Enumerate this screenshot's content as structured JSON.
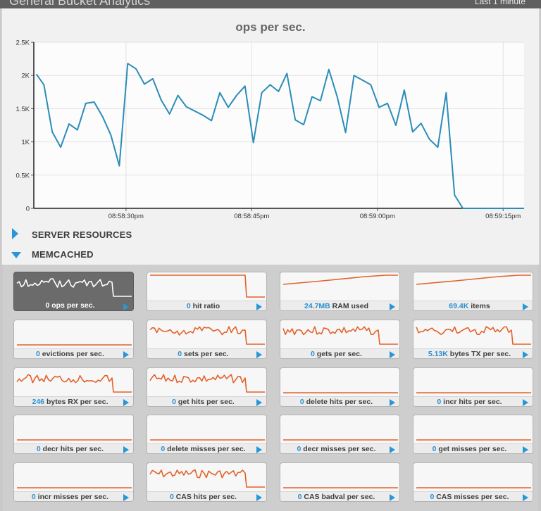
{
  "header": {
    "title": "General Bucket Analytics",
    "range_label": "Last 1 minute"
  },
  "colors": {
    "line_blue": "#2b8db8",
    "spark_orange": "#e2622b",
    "accent": "#2996d8"
  },
  "main_chart": {
    "title": "ops per sec.",
    "chart_data": {
      "type": "line",
      "title": "ops per sec.",
      "xlabel": "",
      "ylabel": "",
      "ylim": [
        0,
        2500
      ],
      "yticks": [
        "0",
        "0.5K",
        "1K",
        "1.5K",
        "2K",
        "2.5K"
      ],
      "ytick_values": [
        0,
        500,
        1000,
        1500,
        2000,
        2500
      ],
      "xticks": [
        "08:58:30pm",
        "08:58:45pm",
        "08:59:00pm",
        "08:59:15pm"
      ],
      "xtick_values": [
        30,
        45,
        60,
        75
      ],
      "xlim": [
        19,
        77.5
      ],
      "grid": true,
      "series": [
        {
          "x": [
            19.3,
            20.2,
            21.2,
            22.2,
            23.2,
            24.2,
            25.2,
            26.2,
            27.2,
            28.2,
            29.2,
            30.2,
            31.2,
            32.2,
            33.2,
            34.2,
            35.2,
            36.2,
            37.2,
            39.2,
            40.2,
            41.2,
            42.2,
            43.2,
            44.2,
            45.2,
            46.2,
            47.2,
            48.2,
            49.2,
            50.2,
            51.2,
            52.2,
            53.2,
            54.2,
            55.2,
            56.2,
            57.2,
            58.2,
            59.2,
            60.2,
            61.2,
            62.2,
            63.2,
            64.2,
            65.2,
            66.2,
            67.2,
            68.2,
            69.2,
            70.2,
            77.5
          ],
          "y": [
            2020,
            1860,
            1150,
            920,
            1270,
            1180,
            1580,
            1600,
            1380,
            1100,
            640,
            2180,
            2100,
            1870,
            1950,
            1630,
            1420,
            1700,
            1530,
            1400,
            1320,
            1740,
            1520,
            1700,
            1840,
            990,
            1740,
            1860,
            1760,
            2030,
            1330,
            1260,
            1680,
            1620,
            2090,
            1680,
            1140,
            2000,
            1930,
            1860,
            1520,
            1580,
            1250,
            1780,
            1150,
            1280,
            1040,
            920,
            1740,
            200,
            0,
            0
          ]
        }
      ]
    }
  },
  "sections": {
    "server_resources": "SERVER RESOURCES",
    "memcached": "MEMCACHED"
  },
  "tiles": [
    {
      "value": "0",
      "label": "ops per sec.",
      "selected": true,
      "shape": "noisy-drop",
      "seed": 1
    },
    {
      "value": "0",
      "label": "hit ratio",
      "shape": "flat-drop"
    },
    {
      "value": "24.7MB",
      "label": "RAM used",
      "shape": "rising"
    },
    {
      "value": "69.4K",
      "label": "items",
      "shape": "rising"
    },
    {
      "value": "0",
      "label": "evictions per sec.",
      "shape": "flat-low"
    },
    {
      "value": "0",
      "label": "sets per sec.",
      "shape": "noisy-drop",
      "seed": 2
    },
    {
      "value": "0",
      "label": "gets per sec.",
      "shape": "noisy-drop",
      "seed": 3
    },
    {
      "value": "5.13K",
      "label": "bytes TX per sec.",
      "shape": "noisy-drop",
      "seed": 4
    },
    {
      "value": "246",
      "label": "bytes RX per sec.",
      "shape": "noisy-drop",
      "seed": 5
    },
    {
      "value": "0",
      "label": "get hits per sec.",
      "shape": "noisy-drop",
      "seed": 6
    },
    {
      "value": "0",
      "label": "delete hits per sec.",
      "shape": "flat-low"
    },
    {
      "value": "0",
      "label": "incr hits per sec.",
      "shape": "flat-low"
    },
    {
      "value": "0",
      "label": "decr hits per sec.",
      "shape": "flat-low"
    },
    {
      "value": "0",
      "label": "delete misses per sec.",
      "shape": "flat-low"
    },
    {
      "value": "0",
      "label": "decr misses per sec.",
      "shape": "flat-low"
    },
    {
      "value": "0",
      "label": "get misses per sec.",
      "shape": "flat-low"
    },
    {
      "value": "0",
      "label": "incr misses per sec.",
      "shape": "flat-low"
    },
    {
      "value": "0",
      "label": "CAS hits per sec.",
      "shape": "noisy-drop",
      "seed": 7
    },
    {
      "value": "0",
      "label": "CAS badval per sec.",
      "shape": "flat-low"
    },
    {
      "value": "0",
      "label": "CAS misses per sec.",
      "shape": "flat-low"
    }
  ]
}
